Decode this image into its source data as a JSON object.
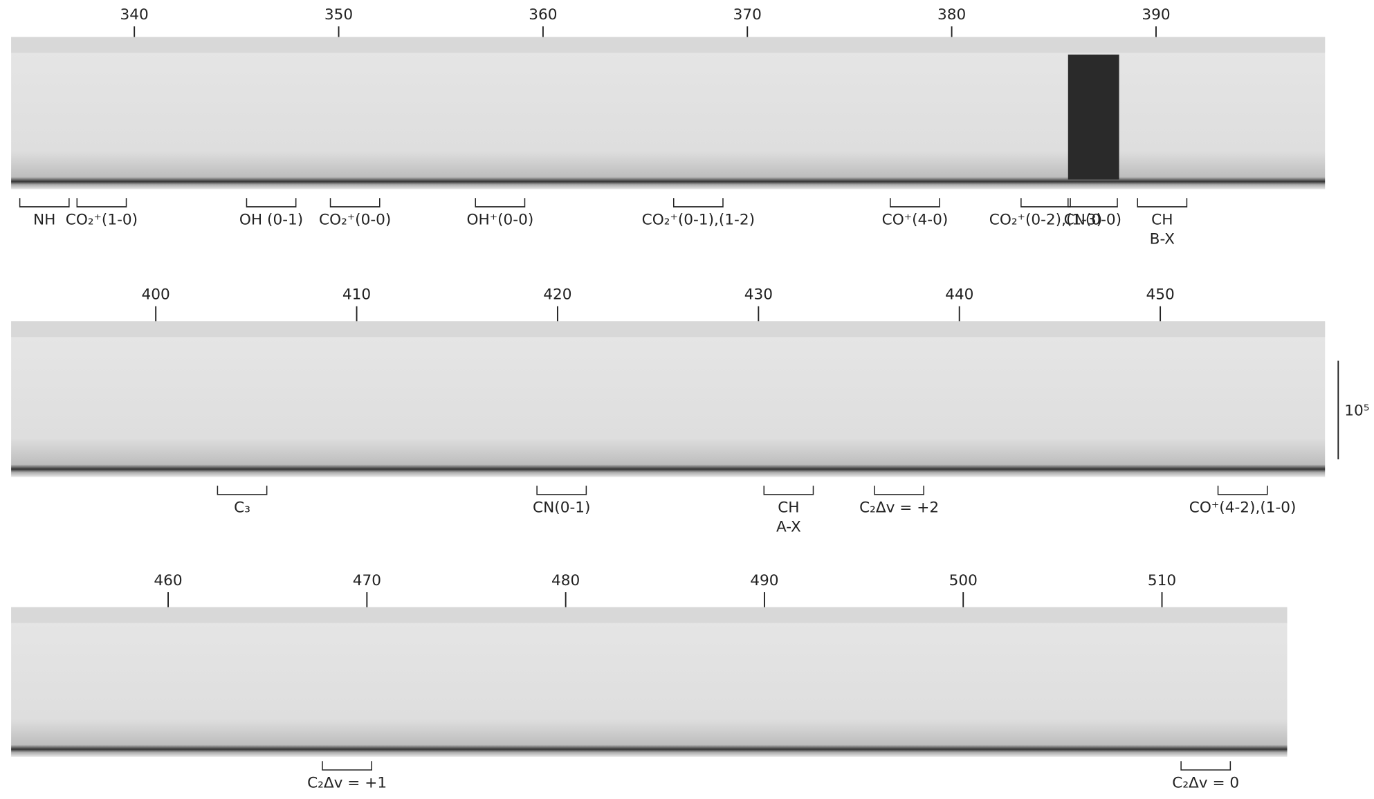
{
  "panels": [
    {
      "ticks": [
        340,
        350,
        360,
        370,
        380,
        390
      ],
      "xlim": [
        333.97,
        398.27
      ],
      "annotations": [
        {
          "x": 335.6,
          "lines": [
            "NH"
          ]
        },
        {
          "x": 338.4,
          "lines": [
            "CO₂⁺(1-0)"
          ]
        },
        {
          "x": 346.7,
          "lines": [
            "OH (0-1)"
          ]
        },
        {
          "x": 350.8,
          "lines": [
            "CO₂⁺(0-0)"
          ]
        },
        {
          "x": 357.9,
          "lines": [
            "OH⁺(0-0)"
          ]
        },
        {
          "x": 367.6,
          "lines": [
            "CO₂⁺(0-1),(1-2)"
          ]
        },
        {
          "x": 378.2,
          "lines": [
            "CO⁺(4-0)"
          ]
        },
        {
          "x": 384.6,
          "lines": [
            "CO₂⁺(0-2),(1-3)"
          ]
        },
        {
          "x": 386.9,
          "lines": [
            "CN(0-0)"
          ]
        },
        {
          "x": 390.3,
          "lines": [
            "CH",
            "B-X"
          ]
        }
      ]
    },
    {
      "ticks": [
        400,
        410,
        420,
        430,
        440,
        450
      ],
      "xlim": [
        392.8,
        458.2
      ],
      "annotations": [
        {
          "x": 404.3,
          "lines": [
            "C₃"
          ]
        },
        {
          "x": 420.2,
          "lines": [
            "CN(0-1)"
          ]
        },
        {
          "x": 431.5,
          "lines": [
            "CH",
            "A-X"
          ]
        },
        {
          "x": 437.0,
          "lines": [
            "C₂Δv = +2"
          ]
        },
        {
          "x": 454.1,
          "lines": [
            "CO⁺(4-2),(1-0)"
          ]
        }
      ],
      "scale_label": "10⁵"
    },
    {
      "ticks": [
        460,
        470,
        480,
        490,
        500,
        510
      ],
      "xlim": [
        452.1,
        516.3
      ],
      "annotations": [
        {
          "x": 469.0,
          "lines": [
            "C₂Δv = +1"
          ]
        },
        {
          "x": 512.2,
          "lines": [
            "C₂Δv = 0"
          ]
        }
      ]
    }
  ]
}
